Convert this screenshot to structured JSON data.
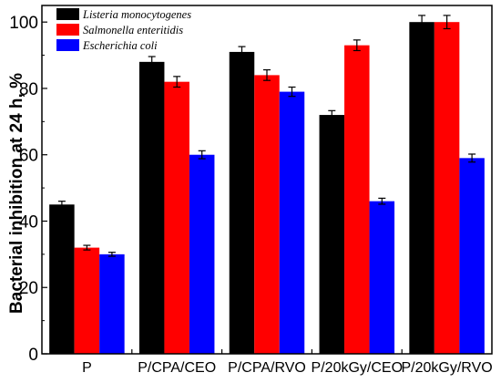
{
  "chart_data": {
    "type": "bar",
    "title": "",
    "xlabel": "",
    "ylabel": "Bacterial inhibition at 24 h, %",
    "ylim": [
      0,
      105
    ],
    "yticks": [
      0,
      20,
      40,
      60,
      80,
      100
    ],
    "grid": false,
    "legend_position": "top-left",
    "categories": [
      "P",
      "P/CPA/CEO",
      "P/CPA/RVO",
      "P/20kGy/CEO",
      "P/20kGy/RVO"
    ],
    "series": [
      {
        "name": "Listeria monocytogenes",
        "color": "#000000",
        "values": [
          45,
          88,
          91,
          72,
          100
        ],
        "errors": [
          1.0,
          1.6,
          1.6,
          1.3,
          2.0
        ]
      },
      {
        "name": "Salmonella enteritidis",
        "color": "#ff0000",
        "values": [
          32,
          82,
          84,
          93,
          100
        ],
        "errors": [
          0.7,
          1.6,
          1.6,
          1.6,
          2.0
        ]
      },
      {
        "name": "Escherichia coli",
        "color": "#0000ff",
        "values": [
          30,
          60,
          79,
          46,
          59
        ],
        "errors": [
          0.6,
          1.2,
          1.4,
          0.9,
          1.2
        ]
      }
    ]
  }
}
